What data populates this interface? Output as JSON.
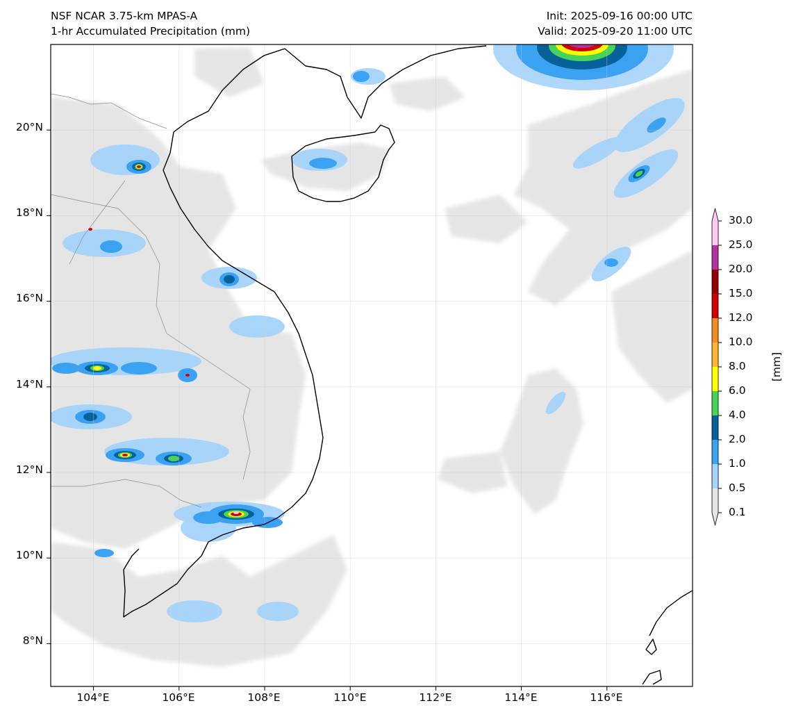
{
  "title": {
    "left_line1": "NSF NCAR 3.75-km MPAS-A",
    "left_line2": "1-hr Accumulated Precipitation (mm)",
    "right_line1": "Init: 2025-09-16 00:00 UTC",
    "right_line2": "Valid: 2025-09-20 11:00 UTC"
  },
  "axes": {
    "lon_range": [
      103,
      118
    ],
    "lat_range": [
      7,
      22
    ],
    "lon_ticks": [
      104,
      106,
      108,
      110,
      112,
      114,
      116
    ],
    "lon_labels": [
      "104°E",
      "106°E",
      "108°E",
      "110°E",
      "112°E",
      "114°E",
      "116°E"
    ],
    "lat_ticks": [
      8,
      10,
      12,
      14,
      16,
      18,
      20
    ],
    "lat_labels": [
      "8°N",
      "10°N",
      "12°N",
      "14°N",
      "16°N",
      "18°N",
      "20°N"
    ],
    "grid": true
  },
  "colorbar": {
    "unit": "[mm]",
    "levels": [
      "0.1",
      "0.5",
      "1.0",
      "2.0",
      "4.0",
      "6.0",
      "8.0",
      "10.0",
      "12.0",
      "15.0",
      "20.0",
      "25.0",
      "30.0"
    ],
    "colors": [
      "#e5e5e5",
      "#a6d3fa",
      "#3ba2f2",
      "#08629a",
      "#48d35a",
      "#ffff00",
      "#ffb62f",
      "#f28c25",
      "#d20101",
      "#970000",
      "#b5339f",
      "#ffc9f3"
    ],
    "extend": "both"
  }
}
